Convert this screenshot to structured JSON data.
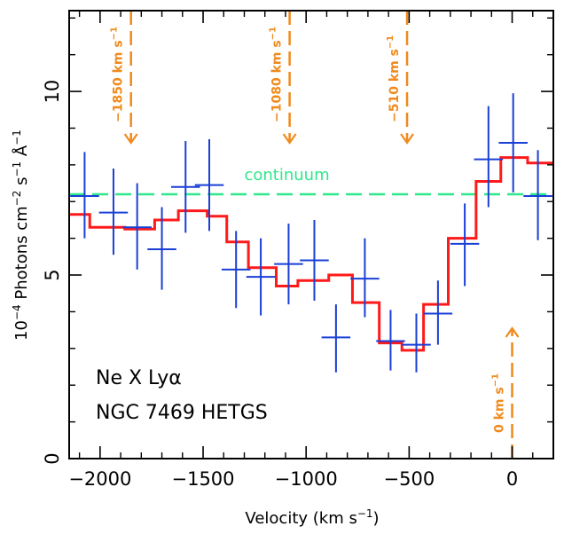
{
  "chart_data": {
    "type": "line",
    "xlabel": "Velocity (km s",
    "xlabel_sup": "−1",
    "xlabel_end": ")",
    "ylabel_prefix": "10",
    "ylabel_prefix_sup": "−4",
    "ylabel_main": " Photons cm",
    "ylabel_sup1": "−2",
    "ylabel_mid": " s",
    "ylabel_sup2": "−1",
    "ylabel_unit": " Å",
    "ylabel_sup3": "−1",
    "xlim": [
      -2150,
      200
    ],
    "ylim": [
      0,
      12.2
    ],
    "xticks": [
      -2000,
      -1500,
      -1000,
      -500,
      0
    ],
    "xtick_labels": [
      "−2000",
      "−1500",
      "−1000",
      "−500",
      "0"
    ],
    "yticks": [
      0,
      5,
      10
    ],
    "ytick_labels": [
      "0",
      "5",
      "10"
    ],
    "colors": {
      "data": "#1a3fd6",
      "model": "#ff1a1a",
      "continuum": "#2ee88a",
      "velocity_marker": "#f08a1c"
    },
    "data_points": [
      {
        "x": -2075,
        "y": 7.15,
        "xerr": 70,
        "ylo": 6.0,
        "yhi": 8.35
      },
      {
        "x": -1935,
        "y": 6.7,
        "xerr": 70,
        "ylo": 5.55,
        "yhi": 7.9
      },
      {
        "x": -1820,
        "y": 6.3,
        "xerr": 70,
        "ylo": 5.15,
        "yhi": 7.5
      },
      {
        "x": -1700,
        "y": 5.7,
        "xerr": 70,
        "ylo": 4.6,
        "yhi": 6.85
      },
      {
        "x": -1585,
        "y": 7.4,
        "xerr": 70,
        "ylo": 6.15,
        "yhi": 8.65
      },
      {
        "x": -1470,
        "y": 7.45,
        "xerr": 70,
        "ylo": 6.2,
        "yhi": 8.7
      },
      {
        "x": -1340,
        "y": 5.15,
        "xerr": 70,
        "ylo": 4.1,
        "yhi": 6.2
      },
      {
        "x": -1220,
        "y": 4.95,
        "xerr": 70,
        "ylo": 3.9,
        "yhi": 6.0
      },
      {
        "x": -1085,
        "y": 5.3,
        "xerr": 70,
        "ylo": 4.2,
        "yhi": 6.4
      },
      {
        "x": -960,
        "y": 5.4,
        "xerr": 70,
        "ylo": 4.3,
        "yhi": 6.5
      },
      {
        "x": -855,
        "y": 3.3,
        "xerr": 70,
        "ylo": 2.35,
        "yhi": 4.2
      },
      {
        "x": -715,
        "y": 4.9,
        "xerr": 70,
        "ylo": 3.85,
        "yhi": 6.0
      },
      {
        "x": -590,
        "y": 3.2,
        "xerr": 70,
        "ylo": 2.4,
        "yhi": 4.05
      },
      {
        "x": -465,
        "y": 3.1,
        "xerr": 70,
        "ylo": 2.35,
        "yhi": 3.95
      },
      {
        "x": -360,
        "y": 3.95,
        "xerr": 70,
        "ylo": 3.1,
        "yhi": 4.85
      },
      {
        "x": -230,
        "y": 5.85,
        "xerr": 70,
        "ylo": 4.7,
        "yhi": 6.95
      },
      {
        "x": -115,
        "y": 8.15,
        "xerr": 70,
        "ylo": 6.85,
        "yhi": 9.6
      },
      {
        "x": 5,
        "y": 8.6,
        "xerr": 70,
        "ylo": 7.25,
        "yhi": 9.95
      },
      {
        "x": 125,
        "y": 7.15,
        "xerr": 70,
        "ylo": 5.95,
        "yhi": 8.4
      }
    ],
    "model_edges": [
      -2150,
      -2050,
      -1880,
      -1735,
      -1620,
      -1480,
      -1385,
      -1280,
      -1145,
      -1040,
      -890,
      -775,
      -645,
      -535,
      -430,
      -310,
      -175,
      -55,
      75,
      200
    ],
    "model_values": [
      6.65,
      6.3,
      6.25,
      6.5,
      6.75,
      6.6,
      5.9,
      5.2,
      4.7,
      4.85,
      5.0,
      4.25,
      3.15,
      2.95,
      4.2,
      6.0,
      7.55,
      8.2,
      8.05
    ],
    "continuum": {
      "y": 7.2,
      "label": "continuum"
    },
    "velocity_markers": [
      {
        "x": -1850,
        "label": "−1850 km s",
        "label_sup": "−1",
        "direction": "down",
        "y_from": 12.2,
        "y_to": 8.6
      },
      {
        "x": -1080,
        "label": "−1080 km s",
        "label_sup": "−1",
        "direction": "down",
        "y_from": 12.2,
        "y_to": 8.6
      },
      {
        "x": -510,
        "label": "−510 km s",
        "label_sup": "−1",
        "direction": "down",
        "y_from": 12.2,
        "y_to": 8.6
      },
      {
        "x": 0,
        "label": "0 km s",
        "label_sup": "−1",
        "direction": "up",
        "y_from": 0,
        "y_to": 3.55
      }
    ],
    "annotations": [
      "Ne X Lyα",
      "NGC 7469 HETGS"
    ]
  }
}
